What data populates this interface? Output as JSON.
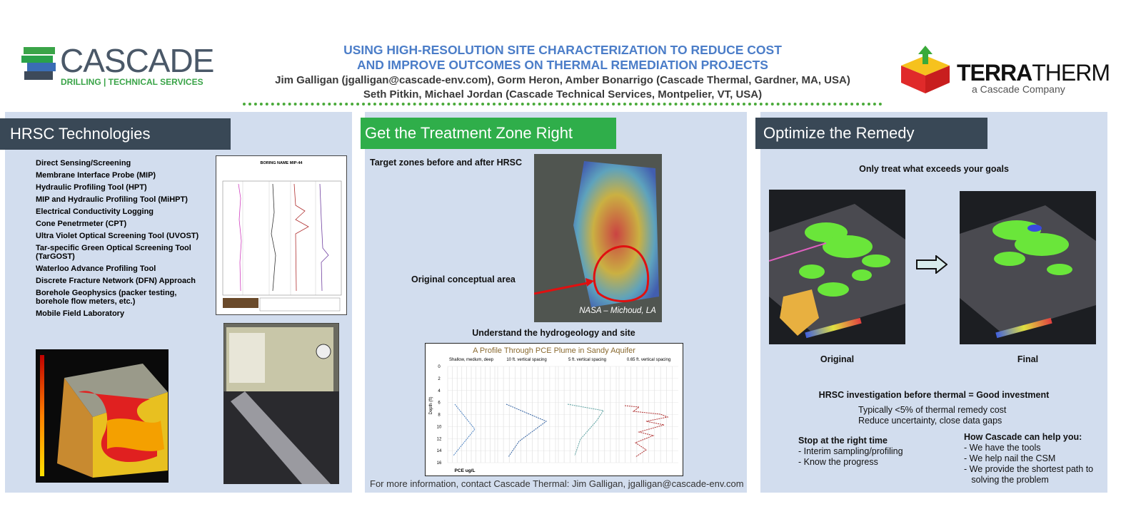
{
  "header": {
    "title_lines": [
      "USING HIGH-RESOLUTION SITE CHARACTERIZATION TO REDUCE COST",
      "AND IMPROVE OUTCOMES ON THERMAL REMEDIATION PROJECTS"
    ],
    "author_lines": [
      "Jim Galligan (jgalligan@cascade-env.com), Gorm Heron, Amber Bonarrigo (Cascade Thermal, Gardner, MA, USA)",
      "Seth Pitkin, Michael Jordan (Cascade Technical Services, Montpelier, VT, USA)"
    ]
  },
  "logo_left": {
    "name": "CASCADE",
    "tagline": "DRILLING | TECHNICAL SERVICES"
  },
  "logo_right": {
    "name_bold": "TERRA",
    "name_light": "THERM",
    "tagline": "a Cascade Company"
  },
  "panel_1": {
    "title": "HRSC Technologies",
    "items": [
      "Direct Sensing/Screening",
      "Membrane Interface Probe (MIP)",
      "Hydraulic Profiling Tool (HPT)",
      "MIP and Hydraulic Profiling Tool (MiHPT)",
      "Electrical Conductivity Logging",
      "Cone Penetrmeter (CPT)",
      "Ultra Violet Optical Screening Tool (UVOST)",
      "Tar-specific Green Optical Screening Tool (TarGOST)",
      "Waterloo Advance Profiling Tool",
      "Discrete Fracture Network (DFN) Approach",
      "Borehole Geophysics (packer testing, borehole flow meters, etc.)",
      "Mobile Field Laboratory"
    ],
    "log_title": "BORING NAME MIP-44"
  },
  "panel_2": {
    "title": "Get the Treatment Zone Right",
    "map_caption": "Target zones before and after HRSC",
    "map_label": "Original conceptual area",
    "map_credit": "NASA – Michoud, LA",
    "chart_caption": "Understand the hydrogeology and site",
    "chart": {
      "title": "A Profile Through PCE Plume in Sandy Aquifer",
      "panels": [
        "Shallow, medium, deep",
        "10 ft. vertical spacing",
        "5 ft. vertical spacing",
        "0.65 ft. vertical spacing"
      ],
      "y_label": "Depth (ft)",
      "x_label": "PCE ug/L",
      "yticks": [
        0,
        2,
        4,
        6,
        8,
        10,
        12,
        14,
        16
      ]
    },
    "contact": "For more information, contact Cascade Thermal:  Jim Galligan, jgalligan@cascade-env.com"
  },
  "panel_3": {
    "title": "Optimize the Remedy",
    "caption": "Only treat what exceeds your goals",
    "image_labels": [
      "Original",
      "Final"
    ],
    "headline": "HRSC investigation before thermal = Good investment",
    "points": [
      "Typically <5% of thermal remedy cost",
      "Reduce uncertainty, close data gaps"
    ],
    "left_heading": "Stop at the right time",
    "left_items": [
      "- Interim sampling/profiling",
      "- Know the progress"
    ],
    "right_heading": "How Cascade can help you:",
    "right_items": [
      "- We have the tools",
      "- We help nail the CSM",
      "- We provide the shortest path to",
      "   solving the problem"
    ]
  }
}
